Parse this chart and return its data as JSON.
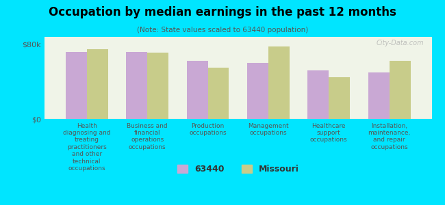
{
  "title": "Occupation by median earnings in the past 12 months",
  "subtitle": "(Note: State values scaled to 63440 population)",
  "background_color": "#00e5ff",
  "plot_background": "#f0f4e8",
  "categories": [
    "Health\ndiagnosing and\ntreating\npractitioners\nand other\ntechnical\noccupations",
    "Business and\nfinancial\noperations\noccupations",
    "Production\noccupations",
    "Management\noccupations",
    "Healthcare\nsupport\noccupations",
    "Installation,\nmaintenance,\nand repair\noccupations"
  ],
  "values_63440": [
    72000,
    72000,
    62000,
    60000,
    52000,
    50000
  ],
  "values_missouri": [
    75000,
    71000,
    55000,
    78000,
    45000,
    62000
  ],
  "color_63440": "#c9a8d4",
  "color_missouri": "#c8cc8a",
  "ylabel_ticks": [
    "$0",
    "$80k"
  ],
  "ymax": 88000,
  "yticks": [
    0,
    80000
  ],
  "watermark": "City-Data.com",
  "legend_label_1": "63440",
  "legend_label_2": "Missouri"
}
